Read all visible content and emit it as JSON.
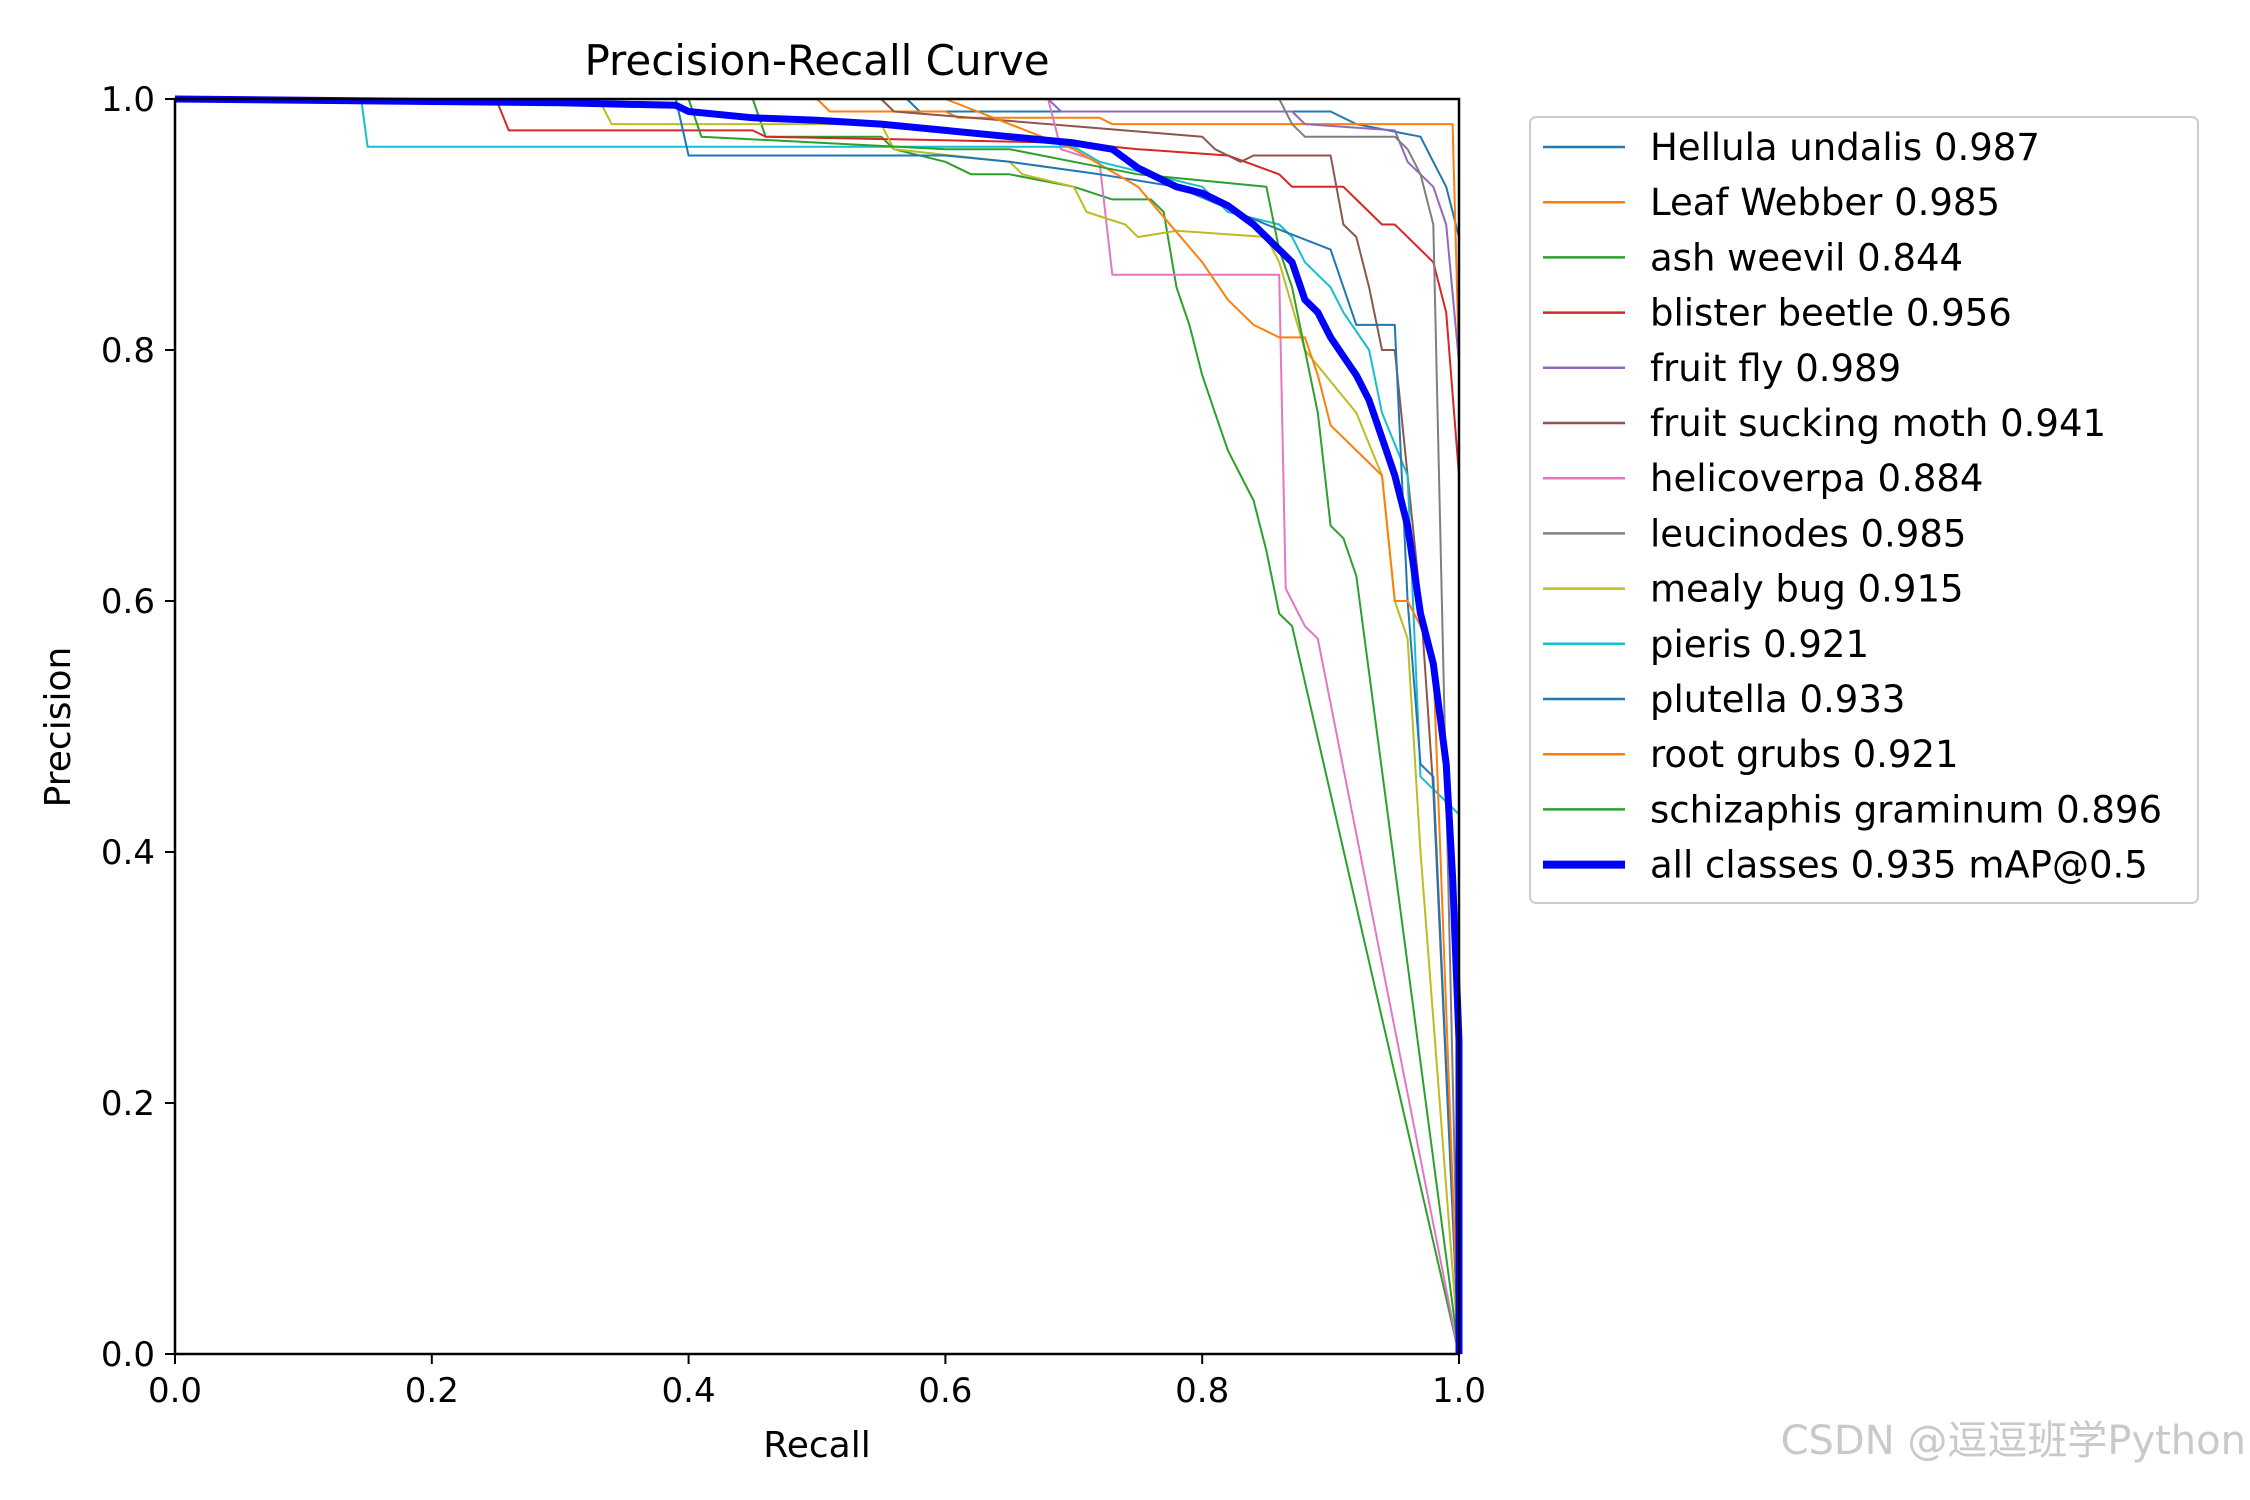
{
  "watermark": "CSDN @逗逗班学Python",
  "chart_data": {
    "type": "line",
    "title": "Precision-Recall Curve",
    "xlabel": "Recall",
    "ylabel": "Precision",
    "xlim": [
      0.0,
      1.0
    ],
    "ylim": [
      0.0,
      1.0
    ],
    "xticks": [
      "0.0",
      "0.2",
      "0.4",
      "0.6",
      "0.8",
      "1.0"
    ],
    "yticks": [
      "0.0",
      "0.2",
      "0.4",
      "0.6",
      "0.8",
      "1.0"
    ],
    "grid": false,
    "legend_position": "outside-right",
    "series": [
      {
        "name": "Hellula undalis 0.987",
        "color": "#1f77b4",
        "width": 2,
        "x": [
          0,
          0.57,
          0.58,
          0.9,
          0.92,
          0.97,
          0.98,
          0.99,
          1.0,
          1.0
        ],
        "y": [
          1.0,
          1.0,
          0.99,
          0.99,
          0.98,
          0.97,
          0.95,
          0.93,
          0.89,
          0.0
        ]
      },
      {
        "name": "Leaf Webber 0.985",
        "color": "#ff7f0e",
        "width": 2,
        "x": [
          0,
          0.5,
          0.51,
          0.6,
          0.61,
          0.72,
          0.73,
          0.85,
          0.86,
          0.99,
          0.995,
          1.0,
          1.0
        ],
        "y": [
          1.0,
          1.0,
          0.99,
          0.99,
          0.985,
          0.985,
          0.98,
          0.98,
          0.98,
          0.98,
          0.98,
          0.79,
          0.0
        ]
      },
      {
        "name": "ash weevil 0.844",
        "color": "#2ca02c",
        "width": 2,
        "x": [
          0,
          0.45,
          0.46,
          0.55,
          0.56,
          0.6,
          0.62,
          0.65,
          0.7,
          0.73,
          0.76,
          0.77,
          0.78,
          0.79,
          0.8,
          0.81,
          0.82,
          0.83,
          0.84,
          0.85,
          0.86,
          0.87,
          1.0
        ],
        "y": [
          1.0,
          1.0,
          0.97,
          0.97,
          0.96,
          0.95,
          0.94,
          0.94,
          0.93,
          0.92,
          0.92,
          0.91,
          0.85,
          0.82,
          0.78,
          0.75,
          0.72,
          0.7,
          0.68,
          0.64,
          0.59,
          0.58,
          0.0
        ]
      },
      {
        "name": "blister beetle 0.956",
        "color": "#d62728",
        "width": 2,
        "x": [
          0,
          0.25,
          0.26,
          0.45,
          0.46,
          0.7,
          0.75,
          0.82,
          0.86,
          0.87,
          0.91,
          0.92,
          0.94,
          0.95,
          0.98,
          0.99,
          1.0,
          1.0
        ],
        "y": [
          1.0,
          1.0,
          0.975,
          0.975,
          0.97,
          0.965,
          0.96,
          0.955,
          0.94,
          0.93,
          0.93,
          0.92,
          0.9,
          0.9,
          0.87,
          0.83,
          0.7,
          0.0
        ]
      },
      {
        "name": "fruit fly 0.989",
        "color": "#9467bd",
        "width": 2,
        "x": [
          0,
          0.68,
          0.69,
          0.87,
          0.88,
          0.95,
          0.96,
          0.98,
          0.99,
          1.0,
          1.0
        ],
        "y": [
          1.0,
          1.0,
          0.99,
          0.99,
          0.98,
          0.975,
          0.95,
          0.93,
          0.9,
          0.79,
          0.0
        ]
      },
      {
        "name": "fruit sucking moth 0.941",
        "color": "#8c564b",
        "width": 2,
        "x": [
          0,
          0.55,
          0.56,
          0.8,
          0.81,
          0.83,
          0.84,
          0.9,
          0.91,
          0.92,
          0.93,
          0.94,
          0.95,
          0.96,
          0.97,
          0.98,
          1.0
        ],
        "y": [
          1.0,
          1.0,
          0.99,
          0.97,
          0.96,
          0.95,
          0.955,
          0.955,
          0.9,
          0.89,
          0.85,
          0.8,
          0.8,
          0.7,
          0.6,
          0.45,
          0.0
        ]
      },
      {
        "name": "helicoverpa 0.884",
        "color": "#e377c2",
        "width": 2,
        "x": [
          0,
          0.68,
          0.69,
          0.72,
          0.73,
          0.77,
          0.78,
          0.86,
          0.865,
          0.87,
          0.88,
          0.89,
          1.0
        ],
        "y": [
          1.0,
          1.0,
          0.96,
          0.95,
          0.86,
          0.86,
          0.86,
          0.86,
          0.61,
          0.6,
          0.58,
          0.57,
          0.0
        ]
      },
      {
        "name": "leucinodes 0.985",
        "color": "#7f7f7f",
        "width": 2,
        "x": [
          0,
          0.86,
          0.87,
          0.88,
          0.95,
          0.96,
          0.97,
          0.98,
          1.0
        ],
        "y": [
          1.0,
          1.0,
          0.98,
          0.97,
          0.97,
          0.96,
          0.94,
          0.9,
          0.0
        ]
      },
      {
        "name": "mealy bug 0.915",
        "color": "#bcbd22",
        "width": 2,
        "x": [
          0,
          0.33,
          0.34,
          0.55,
          0.56,
          0.65,
          0.66,
          0.7,
          0.71,
          0.74,
          0.75,
          0.78,
          0.85,
          0.86,
          0.88,
          0.92,
          0.94,
          0.95,
          0.96,
          0.97,
          1.0
        ],
        "y": [
          1.0,
          1.0,
          0.98,
          0.98,
          0.96,
          0.95,
          0.94,
          0.93,
          0.91,
          0.9,
          0.89,
          0.895,
          0.89,
          0.87,
          0.8,
          0.75,
          0.7,
          0.6,
          0.57,
          0.4,
          0.0
        ]
      },
      {
        "name": "pieris 0.921",
        "color": "#17becf",
        "width": 2,
        "x": [
          0,
          0.145,
          0.15,
          0.7,
          0.72,
          0.8,
          0.82,
          0.86,
          0.87,
          0.88,
          0.9,
          0.91,
          0.93,
          0.94,
          0.96,
          0.97,
          1.0,
          1.0
        ],
        "y": [
          1.0,
          1.0,
          0.962,
          0.962,
          0.95,
          0.93,
          0.91,
          0.9,
          0.89,
          0.87,
          0.85,
          0.83,
          0.8,
          0.75,
          0.7,
          0.46,
          0.43,
          0.0
        ]
      },
      {
        "name": "plutella 0.933",
        "color": "#1f77b4",
        "width": 2,
        "x": [
          0,
          0.39,
          0.4,
          0.6,
          0.65,
          0.72,
          0.78,
          0.85,
          0.9,
          0.92,
          0.95,
          0.96,
          0.97,
          0.98,
          1.0
        ],
        "y": [
          1.0,
          1.0,
          0.955,
          0.955,
          0.95,
          0.94,
          0.93,
          0.9,
          0.88,
          0.82,
          0.82,
          0.6,
          0.47,
          0.46,
          0.0
        ]
      },
      {
        "name": "root grubs 0.921",
        "color": "#ff7f0e",
        "width": 2,
        "x": [
          0,
          0.6,
          0.65,
          0.7,
          0.75,
          0.8,
          0.82,
          0.84,
          0.86,
          0.88,
          0.89,
          0.9,
          0.92,
          0.94,
          0.95,
          0.96,
          0.97,
          0.98,
          1.0
        ],
        "y": [
          1.0,
          1.0,
          0.98,
          0.96,
          0.93,
          0.87,
          0.84,
          0.82,
          0.81,
          0.81,
          0.78,
          0.74,
          0.72,
          0.7,
          0.6,
          0.6,
          0.58,
          0.55,
          0.0
        ]
      },
      {
        "name": "schizaphis graminum 0.896",
        "color": "#2ca02c",
        "width": 2,
        "x": [
          0,
          0.4,
          0.41,
          0.6,
          0.65,
          0.7,
          0.75,
          0.85,
          0.86,
          0.87,
          0.88,
          0.89,
          0.9,
          0.91,
          0.92,
          1.0
        ],
        "y": [
          1.0,
          1.0,
          0.97,
          0.96,
          0.96,
          0.95,
          0.94,
          0.93,
          0.88,
          0.85,
          0.8,
          0.75,
          0.66,
          0.65,
          0.62,
          0.0
        ]
      },
      {
        "name": "all classes 0.935 mAP@0.5",
        "color": "#0000ff",
        "width": 7,
        "x": [
          0,
          0.2,
          0.3,
          0.39,
          0.4,
          0.45,
          0.5,
          0.55,
          0.6,
          0.65,
          0.7,
          0.73,
          0.75,
          0.78,
          0.8,
          0.82,
          0.84,
          0.86,
          0.87,
          0.88,
          0.89,
          0.9,
          0.91,
          0.92,
          0.93,
          0.94,
          0.95,
          0.96,
          0.97,
          0.98,
          0.99,
          0.995,
          1.0,
          1.0
        ],
        "y": [
          1.0,
          0.998,
          0.997,
          0.995,
          0.99,
          0.985,
          0.983,
          0.98,
          0.975,
          0.97,
          0.965,
          0.96,
          0.945,
          0.93,
          0.925,
          0.915,
          0.9,
          0.88,
          0.87,
          0.84,
          0.83,
          0.81,
          0.795,
          0.78,
          0.76,
          0.73,
          0.7,
          0.66,
          0.59,
          0.55,
          0.47,
          0.38,
          0.25,
          0.0
        ]
      }
    ]
  }
}
